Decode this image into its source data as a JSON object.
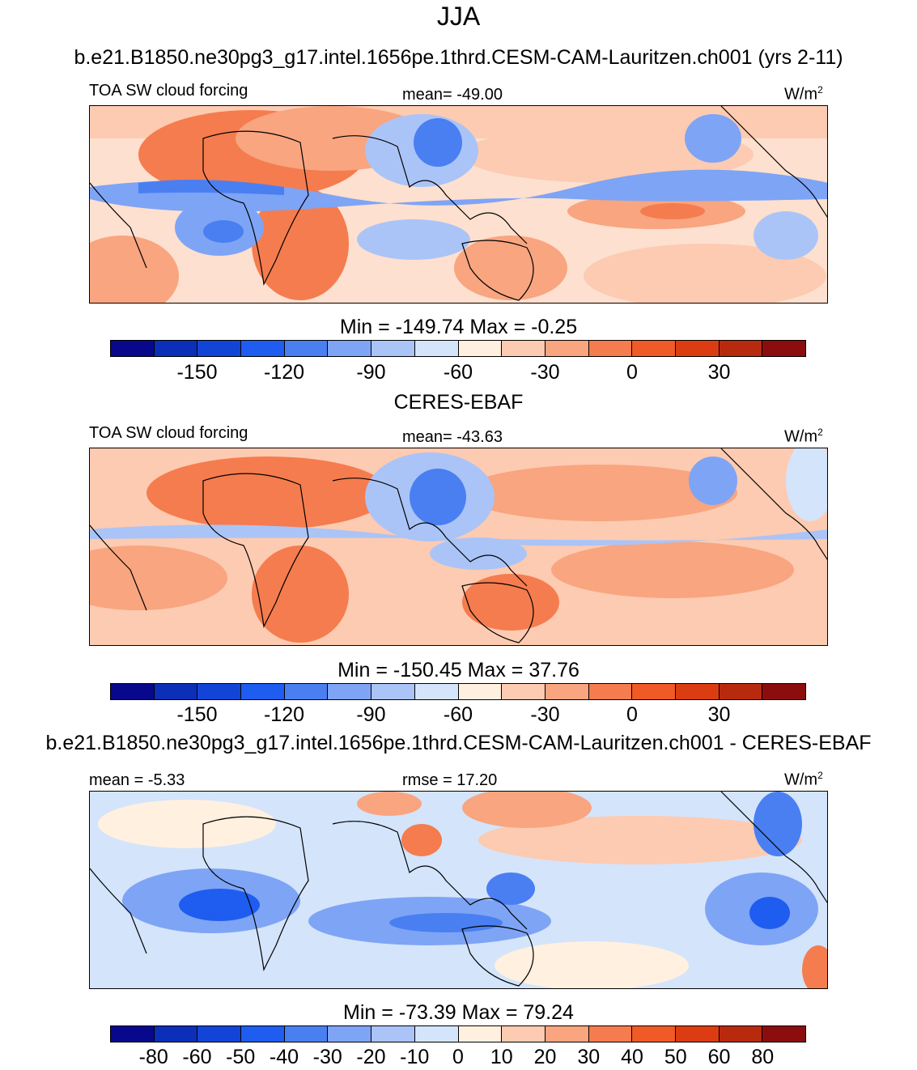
{
  "title": "JJA",
  "model_title": "b.e21.B1850.ne30pg3_g17.intel.1656pe.1thrd.CESM-CAM-Lauritzen.ch001 (yrs 2-11)",
  "obs_title": "CERES-EBAF",
  "diff_title": "b.e21.B1850.ne30pg3_g17.intel.1656pe.1thrd.CESM-CAM-Lauritzen.ch001 - CERES-EBAF",
  "units_base": "W/m",
  "units_exp": "2",
  "panels": {
    "model": {
      "variable": "TOA SW cloud forcing",
      "stat": "mean= -49.00",
      "minmax": "Min = -149.74 Max =  -0.25"
    },
    "obs": {
      "variable": "TOA SW cloud forcing",
      "stat": "mean= -43.63",
      "minmax": "Min = -150.45 Max =  37.76"
    },
    "diff": {
      "stat_left": "mean =  -5.33",
      "stat_center": "rmse =  17.20",
      "minmax": "Min = -73.39 Max =  79.24"
    }
  },
  "colorbar_colors": [
    "#08088c",
    "#0b2fb8",
    "#1244d8",
    "#1f5cf0",
    "#4a7ff2",
    "#7ea4f5",
    "#aac4f7",
    "#d4e4fb",
    "#fff0e0",
    "#fdcbb1",
    "#f8a580",
    "#f57c4e",
    "#f05a26",
    "#dc3c12",
    "#b82a0e",
    "#8c0d0d"
  ],
  "abs_ticks": [
    "-150",
    "-120",
    "-90",
    "-60",
    "-30",
    "0",
    "30"
  ],
  "diff_ticks": [
    "-80",
    "-60",
    "-50",
    "-40",
    "-30",
    "-20",
    "-10",
    "0",
    "10",
    "20",
    "30",
    "40",
    "50",
    "60",
    "80"
  ]
}
